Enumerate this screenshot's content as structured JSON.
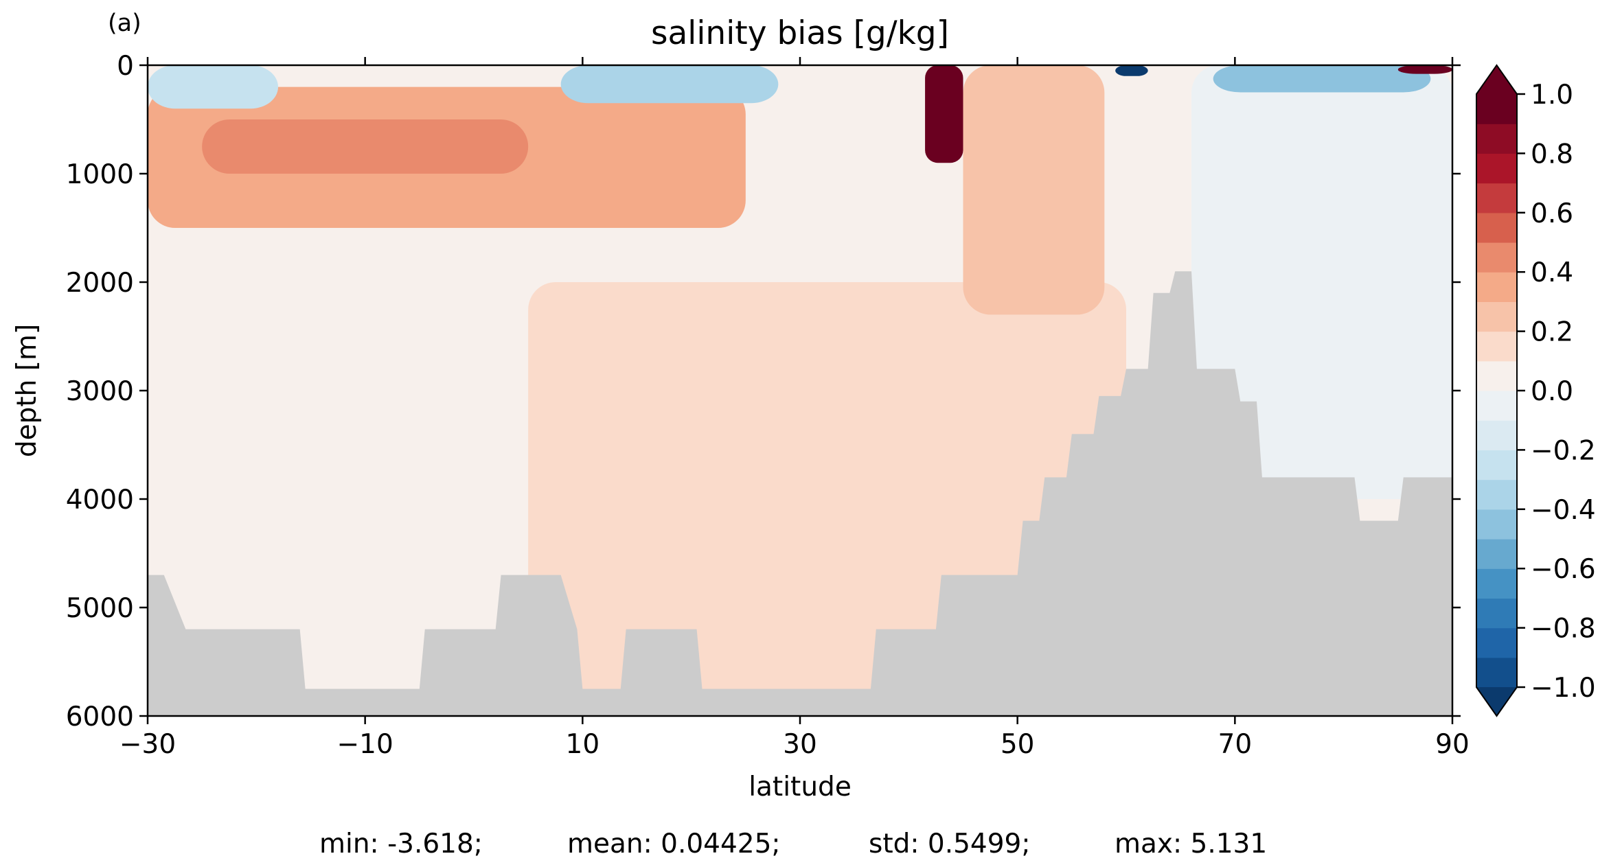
{
  "panel_label": "(a)",
  "stats_line": {
    "min": "min: -3.618;",
    "mean": "mean: 0.04425;",
    "std": "std: 0.5499;",
    "max": "max: 5.131"
  },
  "colors": {
    "land": "#cccccc",
    "colormap": [
      "#0b3a6d",
      "#124f8c",
      "#1f65a8",
      "#2f7bb6",
      "#4592c4",
      "#67a9cf",
      "#8dc2de",
      "#abd4e8",
      "#c6e2ef",
      "#dbeaf2",
      "#ecf1f4",
      "#f7f0ec",
      "#fadbcb",
      "#f7c3a9",
      "#f4aa88",
      "#e98a6d",
      "#d7604d",
      "#c43b3d",
      "#ab1529",
      "#8e0c25",
      "#6a0020"
    ]
  },
  "chart_data": {
    "type": "heatmap",
    "title": "salinity bias [g/kg]",
    "xlabel": "latitude",
    "ylabel": "depth [m]",
    "xlim": [
      -30,
      90
    ],
    "ylim": [
      6000,
      0
    ],
    "y_inverted": true,
    "xticks": [
      -30,
      -10,
      10,
      30,
      50,
      70,
      90
    ],
    "yticks": [
      0,
      1000,
      2000,
      3000,
      4000,
      5000,
      6000
    ],
    "xtick_labels": [
      "−30",
      "−10",
      "10",
      "30",
      "50",
      "70",
      "90"
    ],
    "ytick_labels": [
      "0",
      "1000",
      "2000",
      "3000",
      "4000",
      "5000",
      "6000"
    ],
    "colorbar": {
      "range": [
        -1.0,
        1.0
      ],
      "step": 0.1,
      "extend": "both",
      "ticks": [
        1.0,
        0.8,
        0.6,
        0.4,
        0.2,
        0.0,
        -0.2,
        -0.4,
        -0.6,
        -0.8,
        -1.0
      ],
      "tick_labels": [
        "1.0",
        "0.8",
        "0.6",
        "0.4",
        "0.2",
        "0.0",
        "−0.2",
        "−0.4",
        "−0.6",
        "−0.8",
        "−1.0"
      ]
    },
    "bathymetry": {
      "lat": [
        -30,
        -28.5,
        -26.5,
        -16,
        -15.5,
        -5,
        -4.5,
        2,
        2.5,
        8,
        9.5,
        10,
        13.5,
        14,
        20.5,
        21,
        36.5,
        37,
        42.5,
        43,
        50,
        50.5,
        52,
        52.5,
        54.5,
        55,
        57,
        57.5,
        59.5,
        60,
        62,
        62.5,
        64,
        64.5,
        66,
        66.5,
        70,
        70.5,
        72,
        72.5,
        81,
        81.5,
        85,
        85.5,
        90
      ],
      "depth": [
        4700,
        4700,
        5200,
        5200,
        5750,
        5750,
        5200,
        5200,
        4700,
        4700,
        5200,
        5750,
        5750,
        5200,
        5200,
        5750,
        5750,
        5200,
        5200,
        4700,
        4700,
        4200,
        4200,
        3800,
        3800,
        3400,
        3400,
        3050,
        3050,
        2800,
        2800,
        2100,
        2100,
        1900,
        1900,
        2800,
        2800,
        3100,
        3100,
        3800,
        3800,
        4200,
        4200,
        3800,
        3800
      ]
    },
    "field_features": [
      {
        "name": "surface freshening southern subtropics",
        "lat": [
          -30,
          -18
        ],
        "depth": [
          0,
          400
        ],
        "value": -0.25
      },
      {
        "name": "intermediate salty core",
        "lat": [
          -25,
          5
        ],
        "depth": [
          500,
          1000
        ],
        "value": 0.45
      },
      {
        "name": "intermediate salty tongue",
        "lat": [
          -30,
          25
        ],
        "depth": [
          200,
          1500
        ],
        "value": 0.3
      },
      {
        "name": "surface freshening tropics",
        "lat": [
          8,
          28
        ],
        "depth": [
          0,
          350
        ],
        "value": -0.3
      },
      {
        "name": "Mediterranean outflow salty plume",
        "lat": [
          41.5,
          45
        ],
        "depth": [
          0,
          900
        ],
        "value": 1.0
      },
      {
        "name": "subpolar fresh surface",
        "lat": [
          59,
          62
        ],
        "depth": [
          0,
          100
        ],
        "value": -1.0
      },
      {
        "name": "high-latitude fresh surface",
        "lat": [
          68,
          88
        ],
        "depth": [
          0,
          250
        ],
        "value": -0.45
      },
      {
        "name": "Arctic surface salty patch",
        "lat": [
          85,
          90
        ],
        "depth": [
          0,
          80
        ],
        "value": 1.0
      },
      {
        "name": "northern intermediate salty",
        "lat": [
          45,
          58
        ],
        "depth": [
          0,
          2300
        ],
        "value": 0.25
      },
      {
        "name": "deep weak salty",
        "lat": [
          5,
          60
        ],
        "depth": [
          2000,
          5800
        ],
        "value": 0.15
      },
      {
        "name": "northern deep weak fresh",
        "lat": [
          66,
          90
        ],
        "depth": [
          0,
          4000
        ],
        "value": -0.05
      }
    ]
  }
}
